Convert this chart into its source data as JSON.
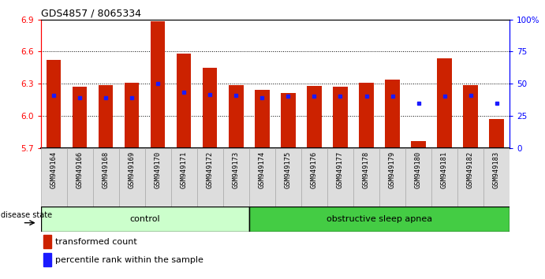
{
  "title": "GDS4857 / 8065334",
  "samples": [
    "GSM949164",
    "GSM949166",
    "GSM949168",
    "GSM949169",
    "GSM949170",
    "GSM949171",
    "GSM949172",
    "GSM949173",
    "GSM949174",
    "GSM949175",
    "GSM949176",
    "GSM949177",
    "GSM949178",
    "GSM949179",
    "GSM949180",
    "GSM949181",
    "GSM949182",
    "GSM949183"
  ],
  "bar_values": [
    6.52,
    6.27,
    6.29,
    6.31,
    6.88,
    6.58,
    6.45,
    6.29,
    6.24,
    6.21,
    6.28,
    6.27,
    6.31,
    6.34,
    5.76,
    6.54,
    6.29,
    5.97
  ],
  "blue_values": [
    6.19,
    6.17,
    6.17,
    6.17,
    6.3,
    6.22,
    6.2,
    6.19,
    6.17,
    6.18,
    6.18,
    6.18,
    6.18,
    6.18,
    6.12,
    6.18,
    6.19,
    6.12
  ],
  "bar_color": "#cc2200",
  "blue_color": "#1a1aff",
  "ymin": 5.7,
  "ymax": 6.9,
  "yticks": [
    5.7,
    6.0,
    6.3,
    6.6,
    6.9
  ],
  "right_yticks": [
    0,
    25,
    50,
    75,
    100
  ],
  "right_yticklabels": [
    "0",
    "25",
    "50",
    "75",
    "100%"
  ],
  "control_count": 8,
  "group_labels": [
    "control",
    "obstructive sleep apnea"
  ],
  "group_colors": [
    "#ccffcc",
    "#44cc44"
  ],
  "disease_state_label": "disease state",
  "legend_red": "transformed count",
  "legend_blue": "percentile rank within the sample",
  "bar_width": 0.55,
  "background_color": "#ffffff",
  "label_bg": "#dddddd"
}
